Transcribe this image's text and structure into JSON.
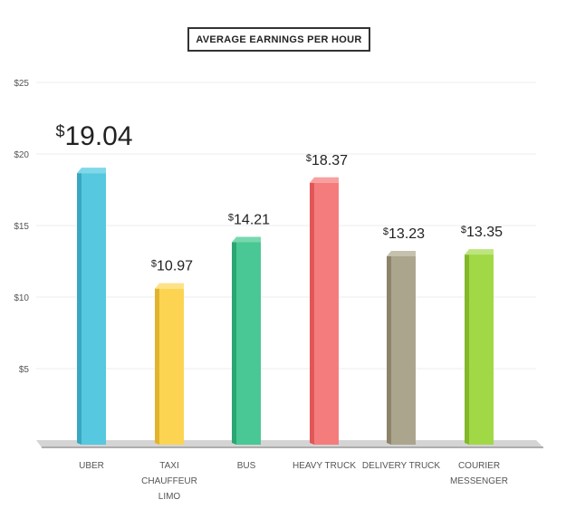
{
  "chart_data": {
    "type": "bar",
    "title": "AVERAGE EARNINGS PER HOUR",
    "xlabel": "",
    "ylabel": "",
    "ylim": [
      0,
      25
    ],
    "yticks": [
      5,
      10,
      15,
      20,
      25
    ],
    "ytick_labels": [
      "$5",
      "$10",
      "$15",
      "$20",
      "$25"
    ],
    "grid": true,
    "categories": [
      [
        "UBER"
      ],
      [
        "TAXI",
        "CHAUFFEUR",
        "LIMO"
      ],
      [
        "BUS"
      ],
      [
        "HEAVY TRUCK"
      ],
      [
        "DELIVERY TRUCK"
      ],
      [
        "COURIER",
        "MESSENGER"
      ]
    ],
    "values": [
      19.04,
      10.97,
      14.21,
      18.37,
      13.23,
      13.35
    ],
    "value_labels": [
      "19.04",
      "10.97",
      "14.21",
      "18.37",
      "13.23",
      "13.35"
    ],
    "currency_symbol": "$",
    "colors": [
      "#56c8df",
      "#fcd452",
      "#49c794",
      "#f57c7c",
      "#aca58d",
      "#a1d846"
    ],
    "side_colors": [
      "#3aa7c2",
      "#e2b32d",
      "#2ba673",
      "#e15757",
      "#8c8468",
      "#83b82a"
    ],
    "top_colors": [
      "#7fd8ea",
      "#fde28a",
      "#77d8ae",
      "#f8a0a0",
      "#c6c1ad",
      "#bde57d"
    ]
  }
}
